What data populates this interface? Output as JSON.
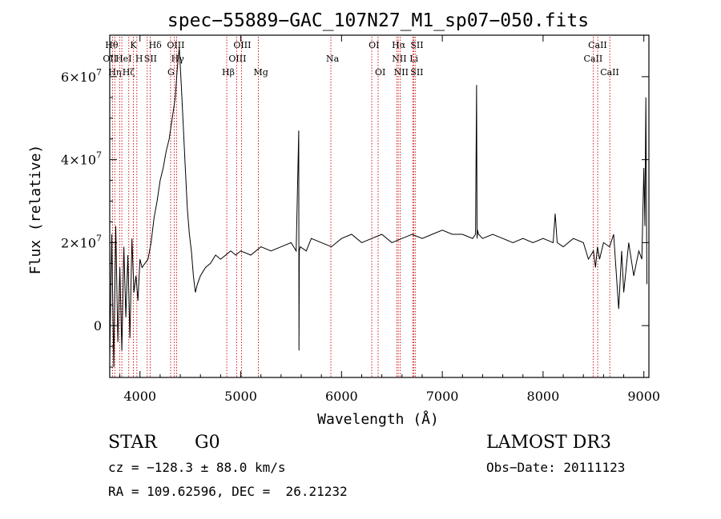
{
  "chart_data": {
    "type": "line",
    "title": "spec−55889−GAC_107N27_M1_sp07−050.fits",
    "xlabel": "Wavelength (Å)",
    "ylabel": "Flux (relative)",
    "xlim": [
      3700,
      9050
    ],
    "ylim": [
      -12500000,
      70000000
    ],
    "x_ticks": [
      {
        "value": 4000,
        "label": "4000"
      },
      {
        "value": 5000,
        "label": "5000"
      },
      {
        "value": 6000,
        "label": "6000"
      },
      {
        "value": 7000,
        "label": "7000"
      },
      {
        "value": 8000,
        "label": "8000"
      },
      {
        "value": 9000,
        "label": "9000"
      }
    ],
    "y_ticks": [
      {
        "value": 0,
        "label": "0"
      },
      {
        "value": 20000000,
        "label": "2×10",
        "exp": "7"
      },
      {
        "value": 40000000,
        "label": "4×10",
        "exp": "7"
      },
      {
        "value": 60000000,
        "label": "6×10",
        "exp": "7"
      }
    ],
    "series": [
      {
        "name": "spectrum",
        "x": [
          3700,
          3720,
          3740,
          3760,
          3780,
          3800,
          3820,
          3840,
          3860,
          3880,
          3900,
          3920,
          3940,
          3960,
          3980,
          4000,
          4020,
          4050,
          4080,
          4110,
          4140,
          4170,
          4200,
          4230,
          4260,
          4290,
          4320,
          4350,
          4370,
          4390,
          4410,
          4430,
          4450,
          4470,
          4490,
          4510,
          4530,
          4550,
          4570,
          4600,
          4650,
          4700,
          4750,
          4800,
          4850,
          4900,
          4950,
          5000,
          5100,
          5200,
          5300,
          5400,
          5500,
          5550,
          5575,
          5578,
          5581,
          5590,
          5650,
          5700,
          5800,
          5900,
          6000,
          6100,
          6200,
          6300,
          6400,
          6500,
          6600,
          6700,
          6800,
          6900,
          7000,
          7100,
          7200,
          7300,
          7330,
          7340,
          7345,
          7350,
          7360,
          7400,
          7500,
          7600,
          7700,
          7800,
          7900,
          8000,
          8100,
          8120,
          8140,
          8200,
          8300,
          8400,
          8450,
          8500,
          8520,
          8540,
          8560,
          8600,
          8660,
          8700,
          8750,
          8780,
          8800,
          8850,
          8900,
          8950,
          8980,
          9000,
          9010,
          9020,
          9030
        ],
        "values": [
          -8000000,
          22000000,
          -10000000,
          24000000,
          -4000000,
          14000000,
          -6000000,
          19000000,
          2000000,
          17000000,
          -3000000,
          21000000,
          8000000,
          12000000,
          6000000,
          16000000,
          14000000,
          15000000,
          16000000,
          20000000,
          26000000,
          30000000,
          35000000,
          38000000,
          42000000,
          45000000,
          50000000,
          55000000,
          62000000,
          67000000,
          58000000,
          48000000,
          38000000,
          28000000,
          22000000,
          18000000,
          12000000,
          8000000,
          10000000,
          12000000,
          14000000,
          15000000,
          17000000,
          16000000,
          17000000,
          18000000,
          17000000,
          18000000,
          17000000,
          19000000,
          18000000,
          19000000,
          20000000,
          18000000,
          47000000,
          -6000000,
          18000000,
          19000000,
          18000000,
          21000000,
          20000000,
          19000000,
          21000000,
          22000000,
          20000000,
          21000000,
          22000000,
          20000000,
          21000000,
          22000000,
          21000000,
          22000000,
          23000000,
          22000000,
          22000000,
          21000000,
          22000000,
          58000000,
          21000000,
          23000000,
          22000000,
          21000000,
          22000000,
          21000000,
          20000000,
          21000000,
          20000000,
          21000000,
          20000000,
          27000000,
          20000000,
          19000000,
          21000000,
          20000000,
          16000000,
          18000000,
          14000000,
          19000000,
          16000000,
          20000000,
          19000000,
          22000000,
          4000000,
          18000000,
          8000000,
          20000000,
          12000000,
          18000000,
          16000000,
          38000000,
          24000000,
          55000000,
          10000000
        ]
      }
    ],
    "lines": [
      {
        "wave": 3727,
        "label": "OII",
        "row": 2,
        "dx": -12
      },
      {
        "wave": 3750,
        "label": "Hθ",
        "row": 1,
        "dx": -12
      },
      {
        "wave": 3798,
        "label": "Hη",
        "row": 3,
        "dx": -14
      },
      {
        "wave": 3820,
        "label": "HeI",
        "row": 2,
        "dx": -8
      },
      {
        "wave": 3889,
        "label": "Hζ",
        "row": 3,
        "dx": -8
      },
      {
        "wave": 3934,
        "label": "K",
        "row": 1,
        "dx": -4
      },
      {
        "wave": 3969,
        "label": "H",
        "row": 2,
        "dx": -2
      },
      {
        "wave": 4072,
        "label": "SII",
        "row": 2,
        "dx": -4
      },
      {
        "wave": 4102,
        "label": "Hδ",
        "row": 1,
        "dx": -2
      },
      {
        "wave": 4304,
        "label": "G",
        "row": 3,
        "dx": -4
      },
      {
        "wave": 4341,
        "label": "Hγ",
        "row": 2,
        "dx": -4
      },
      {
        "wave": 4363,
        "label": "OIII",
        "row": 1,
        "dx": -12
      },
      {
        "wave": 4861,
        "label": "Hβ",
        "row": 3,
        "dx": -6
      },
      {
        "wave": 4959,
        "label": "OIII",
        "row": 2,
        "dx": -10
      },
      {
        "wave": 5007,
        "label": "OIII",
        "row": 1,
        "dx": -10
      },
      {
        "wave": 5175,
        "label": "Mg",
        "row": 3,
        "dx": -6
      },
      {
        "wave": 5894,
        "label": "Na",
        "row": 2,
        "dx": -6
      },
      {
        "wave": 6300,
        "label": "OI",
        "row": 1,
        "dx": -4
      },
      {
        "wave": 6363,
        "label": "OI",
        "row": 3,
        "dx": -4
      },
      {
        "wave": 6548,
        "label": "NII",
        "row": 2,
        "dx": -6
      },
      {
        "wave": 6563,
        "label": "Hα",
        "row": 1,
        "dx": -8
      },
      {
        "wave": 6583,
        "label": "NII",
        "row": 3,
        "dx": -8
      },
      {
        "wave": 6707,
        "label": "Li",
        "row": 2,
        "dx": -4
      },
      {
        "wave": 6716,
        "label": "SII",
        "row": 1,
        "dx": -4
      },
      {
        "wave": 6731,
        "label": "SII",
        "row": 3,
        "dx": -6
      },
      {
        "wave": 8498,
        "label": "CaII",
        "row": 2,
        "dx": -12
      },
      {
        "wave": 8542,
        "label": "CaII",
        "row": 1,
        "dx": -12
      },
      {
        "wave": 8662,
        "label": "CaII",
        "row": 3,
        "dx": -12
      }
    ]
  },
  "info": {
    "class": "STAR",
    "subclass": "G0",
    "survey": "LAMOST DR3",
    "cz": "cz = −128.3 ± 88.0 km/s",
    "obs_date": "Obs−Date: 20111123",
    "coords": "RA = 109.62596, DEC =  26.21232"
  }
}
